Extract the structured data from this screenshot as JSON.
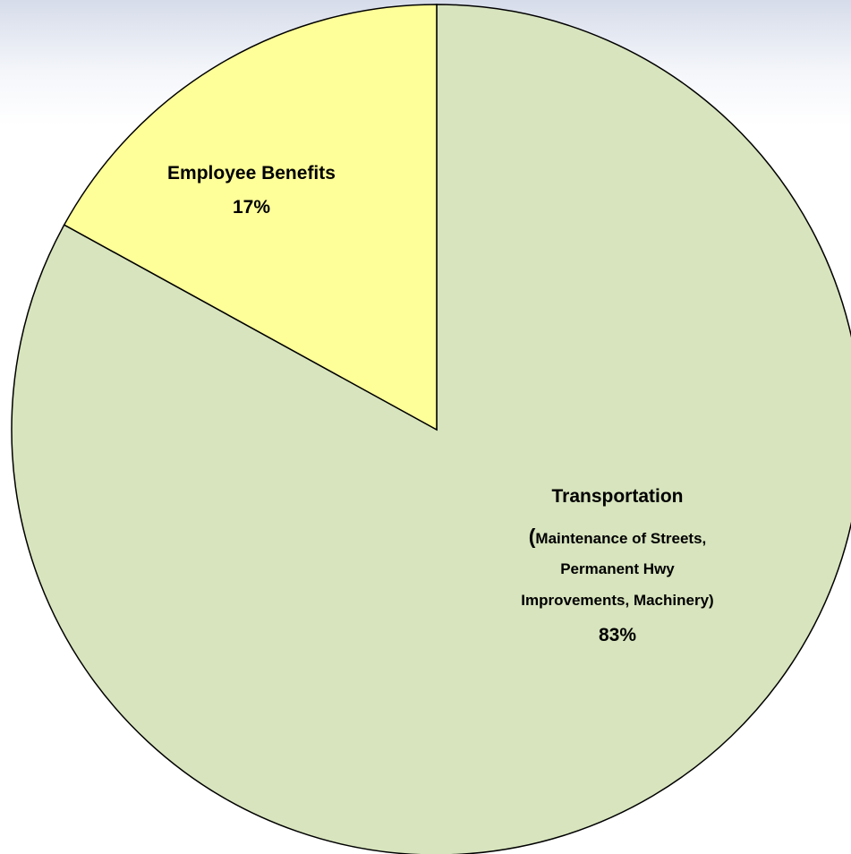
{
  "chart_data": {
    "type": "pie",
    "start_angle_deg": 0,
    "direction": "clockwise",
    "slices": [
      {
        "label": "Transportation",
        "detail_open": "(",
        "detail_lines": [
          "Maintenance of Streets,",
          "Permanent Hwy",
          "Improvements, Machinery)"
        ],
        "percent_label": "83%",
        "value": 83,
        "color": "#d7e4bd"
      },
      {
        "label": "Employee Benefits",
        "detail_open": "",
        "detail_lines": [],
        "percent_label": "17%",
        "value": 17,
        "color": "#ffff99"
      }
    ],
    "outline_color": "#000000"
  }
}
